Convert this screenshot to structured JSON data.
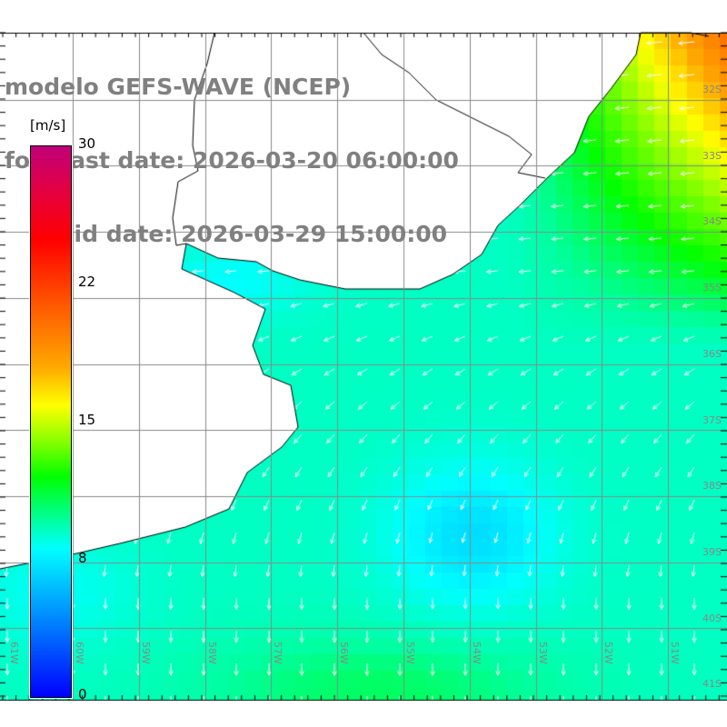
{
  "title": {
    "line1": "modelo GEFS-WAVE (NCEP)",
    "line2": "forecast date: 2026-03-20 06:00:00",
    "line3": "    valid date: 2026-03-29 15:00:00"
  },
  "colorbar": {
    "unit": "[m/s]",
    "labels": [
      "30",
      "22",
      "15",
      "8",
      "0"
    ],
    "range": [
      0,
      30
    ]
  },
  "lat_labels": [
    "32S",
    "33S",
    "34S",
    "35S",
    "36S",
    "37S",
    "38S",
    "39S",
    "40S",
    "41S"
  ],
  "lon_labels": [
    "61W",
    "60W",
    "59W",
    "58W",
    "57W",
    "56W",
    "55W",
    "54W",
    "53W",
    "52W",
    "51W"
  ]
}
